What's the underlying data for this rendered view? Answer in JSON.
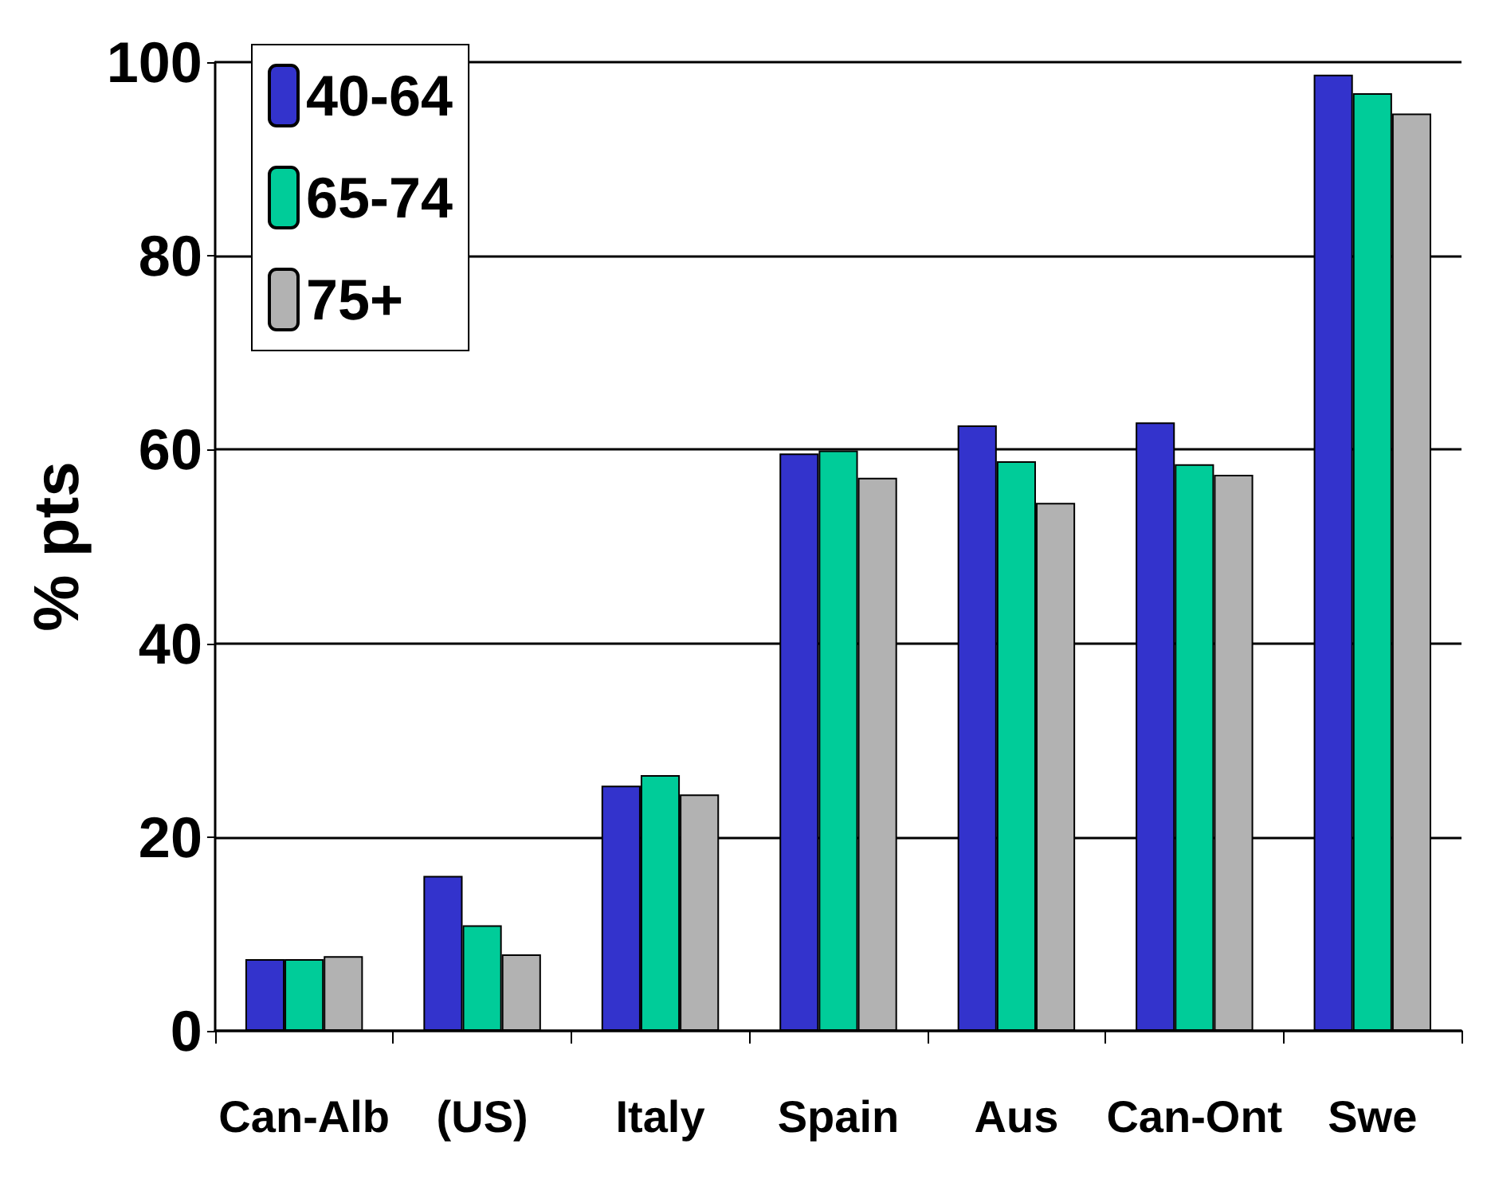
{
  "chart_data": {
    "type": "bar",
    "ylabel": "% pts",
    "categories": [
      "Can-Alb",
      "(US)",
      "Italy",
      "Spain",
      "Aus",
      "Can-Ont",
      "Swe"
    ],
    "series": [
      {
        "name": "40-64",
        "color": "#3333cc",
        "values": [
          7.4,
          16.0,
          25.3,
          59.6,
          62.5,
          62.8,
          98.7
        ]
      },
      {
        "name": "65-74",
        "color": "#00cc99",
        "values": [
          7.4,
          10.9,
          26.4,
          59.9,
          58.8,
          58.5,
          96.8
        ]
      },
      {
        "name": "75+",
        "color": "#b2b2b2",
        "values": [
          7.7,
          7.9,
          24.4,
          57.1,
          54.5,
          57.4,
          94.7
        ]
      }
    ],
    "ylim": [
      0,
      100
    ],
    "yticks": [
      0,
      20,
      40,
      60,
      80,
      100
    ],
    "grid": "y",
    "legend": "top left"
  }
}
